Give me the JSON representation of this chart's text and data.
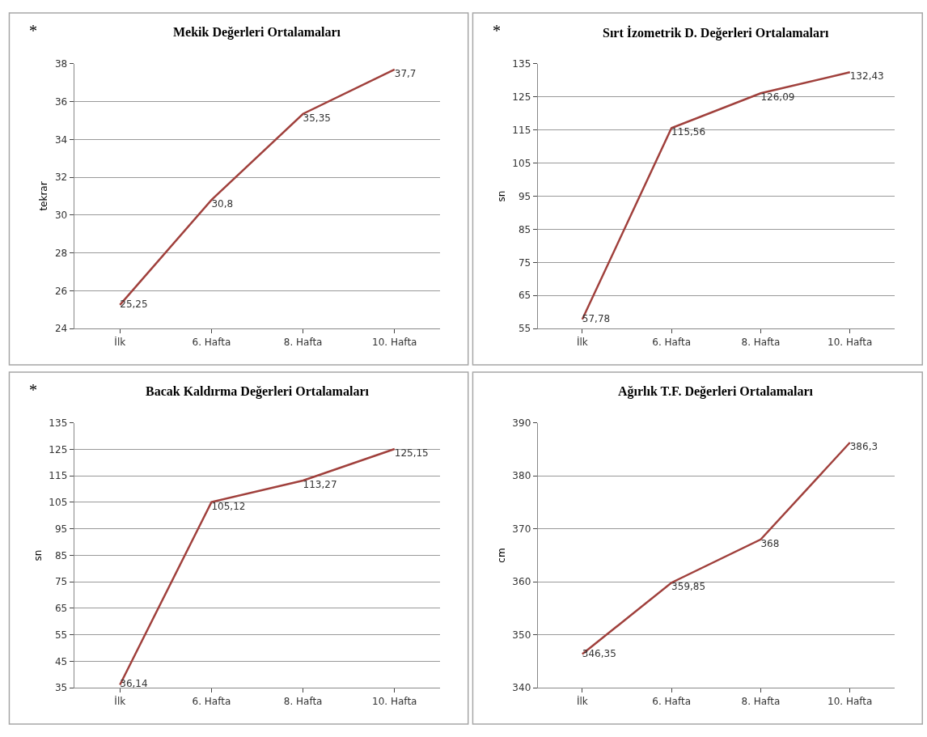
{
  "chart_data": [
    {
      "type": "line",
      "title": "Mekik Değerleri Ortalamaları",
      "annotations": [
        "*"
      ],
      "ylabel": "tekrar",
      "categories": [
        "İlk",
        "6. Hafta",
        "8. Hafta",
        "10. Hafta"
      ],
      "series": [
        {
          "color": "#a0403c",
          "values": [
            25.25,
            30.8,
            35.35,
            37.7
          ],
          "value_labels": [
            "25,25",
            "30,8",
            "35,35",
            "37,7"
          ]
        }
      ],
      "ylim": [
        24,
        38
      ],
      "yticks": [
        24,
        26,
        28,
        30,
        32,
        34,
        36,
        38
      ],
      "grid": "y",
      "marker": "none"
    },
    {
      "type": "line",
      "title": "Sırt İzometrik D. Değerleri Ortalamaları",
      "annotations": [
        "*"
      ],
      "ylabel": "sn",
      "categories": [
        "İlk",
        "6. Hafta",
        "8. Hafta",
        "10. Hafta"
      ],
      "series": [
        {
          "color": "#a0403c",
          "values": [
            57.78,
            115.56,
            126.09,
            132.43
          ],
          "value_labels": [
            "57,78",
            "115,56",
            "126,09",
            "132,43"
          ]
        }
      ],
      "ylim": [
        55,
        135
      ],
      "yticks": [
        55,
        65,
        75,
        85,
        95,
        105,
        115,
        125,
        135
      ],
      "grid": "y",
      "marker": "none"
    },
    {
      "type": "line",
      "title": "Bacak Kaldırma Değerleri Ortalamaları",
      "annotations": [
        "*"
      ],
      "ylabel": "sn",
      "categories": [
        "İlk",
        "6. Hafta",
        "8. Hafta",
        "10. Hafta"
      ],
      "series": [
        {
          "color": "#a0403c",
          "values": [
            36.14,
            105.12,
            113.27,
            125.15
          ],
          "value_labels": [
            "36,14",
            "105,12",
            "113,27",
            "125,15"
          ]
        }
      ],
      "ylim": [
        35,
        135
      ],
      "yticks": [
        35,
        45,
        55,
        65,
        75,
        85,
        95,
        105,
        115,
        125,
        135
      ],
      "grid": "y",
      "marker": "none"
    },
    {
      "type": "line",
      "title": "Ağırlık T.F. Değerleri Ortalamaları",
      "ylabel": "cm",
      "categories": [
        "İlk",
        "6. Hafta",
        "8. Hafta",
        "10. Hafta"
      ],
      "series": [
        {
          "color": "#a0403c",
          "values": [
            346.35,
            359.85,
            368,
            386.3
          ],
          "value_labels": [
            "346,35",
            "359,85",
            "368",
            "386,3"
          ]
        }
      ],
      "ylim": [
        340,
        390
      ],
      "yticks": [
        340,
        350,
        360,
        370,
        380,
        390
      ],
      "grid": "y",
      "marker": "none"
    }
  ]
}
